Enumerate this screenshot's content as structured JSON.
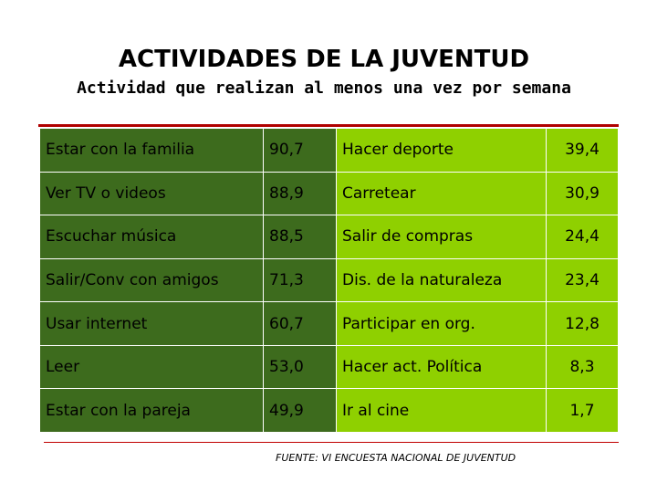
{
  "title": "ACTIVIDADES DE LA JUVENTUD",
  "subtitle": "Actividad que realizan al menos una vez por semana",
  "rows": [
    {
      "a": "Estar con la familia",
      "av": "90,7",
      "b": "Hacer deporte",
      "bv": "39,4"
    },
    {
      "a": "Ver TV o videos",
      "av": "88,9",
      "b": "Carretear",
      "bv": "30,9"
    },
    {
      "a": "Escuchar música",
      "av": "88,5",
      "b": "Salir de compras",
      "bv": "24,4"
    },
    {
      "a": "Salir/Conv con amigos",
      "av": "71,3",
      "b": "Dis. de la naturaleza",
      "bv": "23,4"
    },
    {
      "a": "Usar internet",
      "av": "60,7",
      "b": "Participar en org.",
      "bv": "12,8"
    },
    {
      "a": "Leer",
      "av": "53,0",
      "b": "Hacer act. Política",
      "bv": "8,3"
    },
    {
      "a": "Estar con la pareja",
      "av": "49,9",
      "b": "Ir al cine",
      "bv": "1,7"
    }
  ],
  "source": "FUENTE: VI ENCUESTA NACIONAL DE JUVENTUD",
  "colors": {
    "dark_green": "#3d6b1d",
    "light_green": "#8fd000",
    "rule": "#b00000"
  }
}
